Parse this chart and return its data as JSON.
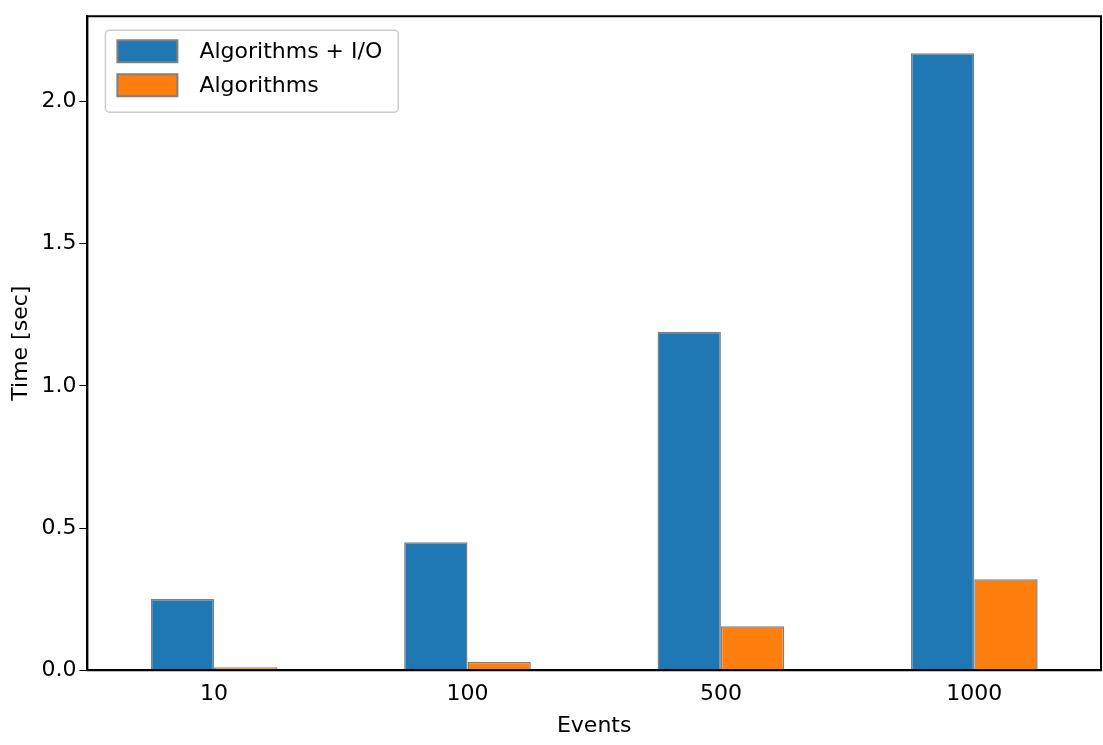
{
  "chart_data": {
    "type": "bar",
    "xlabel": "Events",
    "ylabel": "Time [sec]",
    "categories": [
      "10",
      "100",
      "500",
      "1000"
    ],
    "series": [
      {
        "name": "Algorithms + I/O",
        "color": "#1f77b4",
        "values": [
          0.25,
          0.45,
          1.19,
          2.17
        ]
      },
      {
        "name": "Algorithms",
        "color": "#ff7f0e",
        "values": [
          0.01,
          0.03,
          0.155,
          0.32
        ]
      }
    ],
    "ylim": [
      0,
      2.3
    ],
    "yticks": [
      {
        "value": 0,
        "label": "0.0"
      },
      {
        "value": 0.5,
        "label": "0.5"
      },
      {
        "value": 1,
        "label": "1.0"
      },
      {
        "value": 1.5,
        "label": "1.5"
      },
      {
        "value": 2,
        "label": "2.0"
      }
    ],
    "grid": false,
    "legend": "top left"
  }
}
